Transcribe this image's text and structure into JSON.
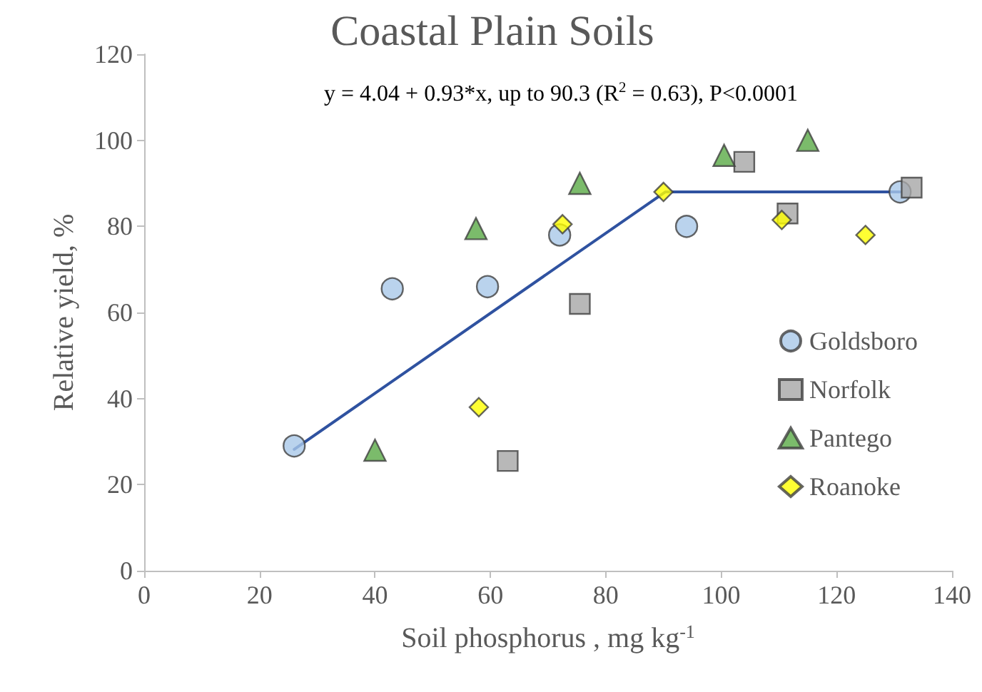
{
  "chart_data": {
    "type": "scatter",
    "title": "Coastal Plain Soils",
    "annotations": [
      "y = 4.04 + 0.93*x, up to 90.3 (R$^{2}$ = 0.63), P<0.0001"
    ],
    "xlabel": "Soil phosphorus , mg kg$^{-1}$",
    "ylabel": "Relative yield, %",
    "xlim": [
      0,
      140
    ],
    "xticks": [
      0,
      20,
      40,
      60,
      80,
      100,
      120,
      140
    ],
    "ylim": [
      0,
      120
    ],
    "yticks": [
      0,
      20,
      40,
      60,
      80,
      100,
      120
    ],
    "grid": false,
    "legend": "right",
    "series": [
      {
        "name": "Goldsboro",
        "color": "#a9c8e8",
        "marker": "circle",
        "x": [
          26,
          43,
          59.5,
          72,
          94,
          131
        ],
        "values": [
          29,
          65.5,
          66,
          78,
          80,
          88
        ]
      },
      {
        "name": "Norfolk",
        "color": "#a6a6a6",
        "marker": "square",
        "x": [
          63,
          75.5,
          104,
          111.5,
          133
        ],
        "values": [
          25.5,
          62,
          95,
          83,
          89
        ]
      },
      {
        "name": "Pantego",
        "color": "#5aaa46",
        "marker": "triangle",
        "x": [
          40,
          57.5,
          75.5,
          100.5,
          115
        ],
        "values": [
          28,
          79.5,
          90,
          96.5,
          100
        ]
      },
      {
        "name": "Roanoke",
        "color": "#ffff00",
        "marker": "diamond",
        "x": [
          58,
          72.5,
          90,
          110.5,
          125
        ],
        "values": [
          38,
          80.5,
          88,
          81.5,
          78
        ]
      },
      {
        "type": "line",
        "color": "#2f52a0",
        "marker": "none",
        "x": [
          26,
          90.3,
          131
        ],
        "values": [
          28.2,
          88,
          88
        ]
      }
    ]
  }
}
